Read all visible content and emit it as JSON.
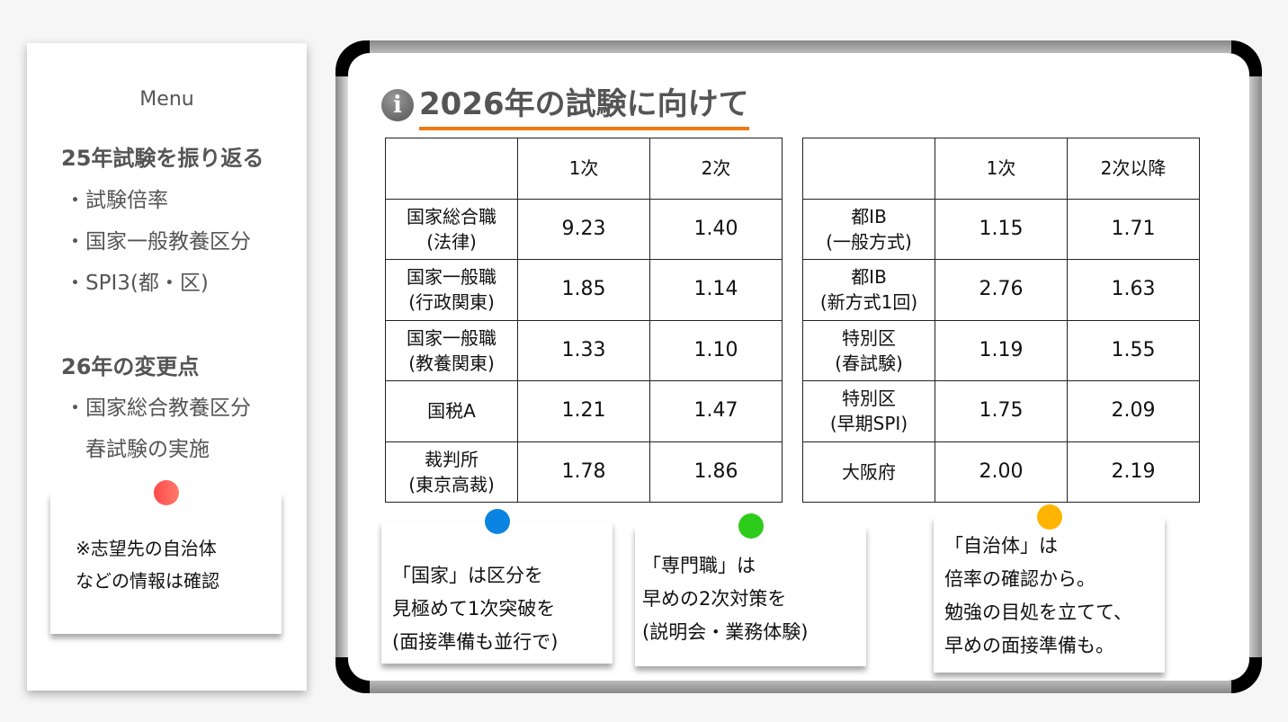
{
  "sidebar": {
    "menu_label": "Menu",
    "section1": {
      "title": "25年試験を振り返る",
      "items": [
        "・試験倍率",
        "・国家一般教養区分",
        "・SPI3(都・区)"
      ]
    },
    "section2": {
      "title": "26年の変更点",
      "items": [
        "・国家総合教養区分",
        "　春試験の実施"
      ]
    },
    "note": {
      "lines": [
        "※志望先の自治体",
        "などの情報は確認"
      ],
      "pin_color": "#ff5a4e"
    }
  },
  "main": {
    "icon": "info-icon",
    "title": "2026年の試験に向けて",
    "accent": "#f07a10",
    "table_national": {
      "headers": [
        "",
        "1次",
        "2次"
      ],
      "rows": [
        {
          "name": "国家総合職\n(法律)",
          "values": [
            "9.23",
            "1.40"
          ]
        },
        {
          "name": "国家一般職\n(行政関東)",
          "values": [
            "1.85",
            "1.14"
          ]
        },
        {
          "name": "国家一般職\n(教養関東)",
          "values": [
            "1.33",
            "1.10"
          ]
        },
        {
          "name": "国税A",
          "values": [
            "1.21",
            "1.47"
          ]
        },
        {
          "name": "裁判所\n(東京高裁)",
          "values": [
            "1.78",
            "1.86"
          ]
        }
      ]
    },
    "table_local": {
      "headers": [
        "",
        "1次",
        "2次以降"
      ],
      "rows": [
        {
          "name": "都IB\n(一般方式)",
          "values": [
            "1.15",
            "1.71"
          ]
        },
        {
          "name": "都IB\n(新方式1回)",
          "values": [
            "2.76",
            "1.63"
          ]
        },
        {
          "name": "特別区\n(春試験)",
          "values": [
            "1.19",
            "1.55"
          ]
        },
        {
          "name": "特別区\n(早期SPI)",
          "values": [
            "1.75",
            "2.09"
          ]
        },
        {
          "name": "大阪府",
          "values": [
            "2.00",
            "2.19"
          ]
        }
      ]
    },
    "notes": [
      {
        "lines": [
          "「国家」は区分を",
          "見極めて1次突破を",
          "(面接準備も並行で)"
        ],
        "pin_color": "#0a84e0"
      },
      {
        "lines": [
          "「専門職」は",
          "早めの2次対策を",
          "(説明会・業務体験)"
        ],
        "pin_color": "#2ecc1a"
      },
      {
        "lines": [
          "「自治体」は",
          "倍率の確認から。",
          "勉強の目処を立てて、",
          "早めの面接準備も。"
        ],
        "pin_color": "#ffb400"
      }
    ]
  }
}
